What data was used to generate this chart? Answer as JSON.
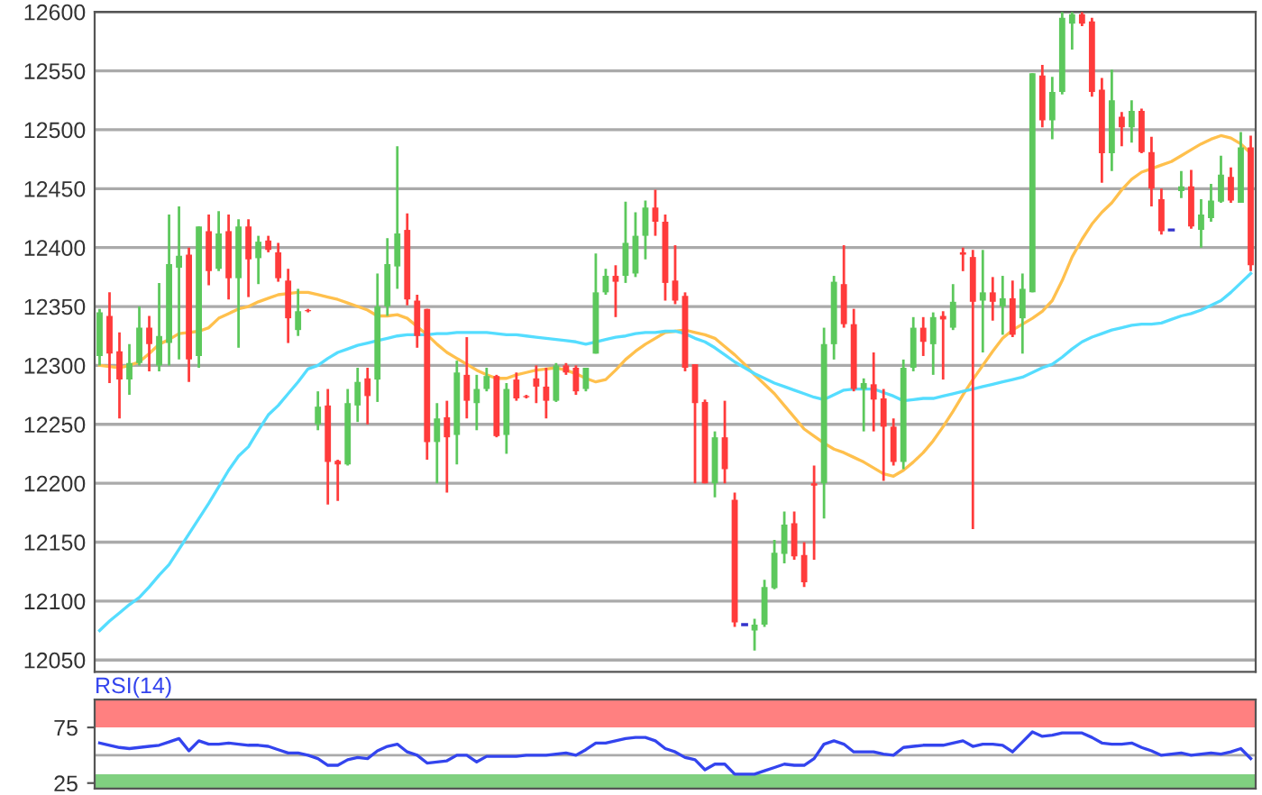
{
  "chart_data": [
    {
      "type": "candlestick",
      "categories": [
        null,
        null,
        null,
        null,
        null,
        null,
        null,
        null,
        null,
        null,
        null,
        null,
        null,
        null,
        null,
        null,
        null,
        null,
        null,
        null,
        null,
        null,
        null,
        null,
        null,
        null,
        null,
        null,
        null,
        null,
        null,
        null,
        null,
        null,
        null,
        null,
        null,
        null,
        null,
        null,
        null,
        null,
        null,
        null,
        null,
        null,
        null,
        null,
        null,
        null,
        null,
        null,
        null,
        null,
        null,
        null,
        null,
        null,
        null,
        null,
        null,
        null,
        null,
        null,
        null,
        null,
        null,
        null,
        null,
        null,
        null,
        null,
        null,
        null,
        null,
        null,
        null,
        null,
        null,
        null,
        null,
        null,
        null,
        null,
        null,
        null,
        null,
        null,
        null,
        null,
        null,
        null,
        null,
        null,
        null,
        null,
        null,
        null,
        null,
        null,
        null,
        null,
        null,
        null,
        null,
        null,
        null,
        null,
        null,
        null,
        null,
        null,
        null,
        null,
        null,
        null,
        null
      ],
      "ohlc": [
        [
          12308,
          12348,
          12300,
          12345
        ],
        [
          12342,
          12362,
          12285,
          12310
        ],
        [
          12312,
          12328,
          12255,
          12288
        ],
        [
          12288,
          12318,
          12275,
          12302
        ],
        [
          12302,
          12350,
          12300,
          12332
        ],
        [
          12332,
          12342,
          12295,
          12318
        ],
        [
          12300,
          12370,
          12295,
          12325
        ],
        [
          12319,
          12428,
          12300,
          12386
        ],
        [
          12383,
          12435,
          12305,
          12393
        ],
        [
          12394,
          12400,
          12286,
          12305
        ],
        [
          12308,
          12418,
          12298,
          12418
        ],
        [
          12414,
          12428,
          12368,
          12380
        ],
        [
          12382,
          12431,
          12380,
          12412
        ],
        [
          12414,
          12428,
          12356,
          12374
        ],
        [
          12374,
          12424,
          12315,
          12418
        ],
        [
          12418,
          12424,
          12358,
          12390
        ],
        [
          12391,
          12410,
          12369,
          12405
        ],
        [
          12406,
          12410,
          12396,
          12398
        ],
        [
          12396,
          12404,
          12371,
          12374
        ],
        [
          12372,
          12382,
          12319,
          12340
        ],
        [
          12330,
          12365,
          12325,
          12346
        ],
        [
          12347,
          12348,
          12345,
          12346
        ],
        [
          12250,
          12278,
          12245,
          12265
        ],
        [
          12266,
          12280,
          12182,
          12218
        ],
        [
          12219,
          12220,
          12185,
          12216
        ],
        [
          12216,
          12280,
          12215,
          12268
        ],
        [
          12266,
          12298,
          12252,
          12286
        ],
        [
          12289,
          12298,
          12250,
          12274
        ],
        [
          12288,
          12378,
          12269,
          12350
        ],
        [
          12350,
          12408,
          12342,
          12386
        ],
        [
          12384,
          12486,
          12365,
          12412
        ],
        [
          12415,
          12429,
          12351,
          12356
        ],
        [
          12355,
          12360,
          12315,
          12325
        ],
        [
          12348,
          12348,
          12220,
          12235
        ],
        [
          12235,
          12268,
          12200,
          12255
        ],
        [
          12256,
          12270,
          12192,
          12239
        ],
        [
          12241,
          12304,
          12216,
          12294
        ],
        [
          12292,
          12324,
          12255,
          12270
        ],
        [
          12268,
          12292,
          12245,
          12280
        ],
        [
          12280,
          12298,
          12278,
          12291
        ],
        [
          12291,
          12292,
          12239,
          12240
        ],
        [
          12241,
          12285,
          12225,
          12280
        ],
        [
          12288,
          12294,
          12270,
          12272
        ],
        [
          12274,
          12275,
          12272,
          12273
        ],
        [
          12289,
          12300,
          12268,
          12282
        ],
        [
          12282,
          12298,
          12255,
          12270
        ],
        [
          12270,
          12302,
          12269,
          12300
        ],
        [
          12300,
          12302,
          12292,
          12294
        ],
        [
          12298,
          12300,
          12275,
          12278
        ],
        [
          12280,
          12298,
          12278,
          12298
        ],
        [
          12310,
          12395,
          12310,
          12362
        ],
        [
          12362,
          12382,
          12360,
          12376
        ],
        [
          12376,
          12385,
          12341,
          12371
        ],
        [
          12376,
          12439,
          12370,
          12404
        ],
        [
          12378,
          12430,
          12375,
          12410
        ],
        [
          12410,
          12440,
          12390,
          12434
        ],
        [
          12434,
          12449,
          12410,
          12422
        ],
        [
          12422,
          12428,
          12355,
          12370
        ],
        [
          12372,
          12402,
          12352,
          12355
        ],
        [
          12359,
          12362,
          12295,
          12298
        ],
        [
          12301,
          12301,
          12200,
          12268
        ],
        [
          12269,
          12271,
          12200,
          12200
        ],
        [
          12200,
          12244,
          12188,
          12239
        ],
        [
          12239,
          12270,
          12200,
          12212
        ],
        [
          12186,
          12192,
          12078,
          12082
        ],
        [
          12080,
          12080,
          12080,
          12080
        ],
        [
          12075,
          12085,
          12058,
          12080
        ],
        [
          12080,
          12118,
          12078,
          12112
        ],
        [
          12111,
          12152,
          12110,
          12141
        ],
        [
          12140,
          12176,
          12132,
          12165
        ],
        [
          12166,
          12176,
          12135,
          12138
        ],
        [
          12139,
          12150,
          12112,
          12116
        ],
        [
          12200,
          12215,
          12135,
          12198
        ],
        [
          12200,
          12332,
          12170,
          12318
        ],
        [
          12318,
          12376,
          12305,
          12371
        ],
        [
          12369,
          12402,
          12332,
          12335
        ],
        [
          12335,
          12348,
          12278,
          12280
        ],
        [
          12280,
          12289,
          12244,
          12285
        ],
        [
          12284,
          12311,
          12244,
          12271
        ],
        [
          12272,
          12280,
          12202,
          12248
        ],
        [
          12248,
          12255,
          12215,
          12218
        ],
        [
          12218,
          12305,
          12212,
          12298
        ],
        [
          12298,
          12341,
          12295,
          12332
        ],
        [
          12332,
          12341,
          12308,
          12320
        ],
        [
          12318,
          12345,
          12292,
          12341
        ],
        [
          12342,
          12346,
          12288,
          12339
        ],
        [
          12332,
          12369,
          12330,
          12354
        ],
        [
          12396,
          12400,
          12380,
          12394
        ],
        [
          12392,
          12398,
          12161,
          12354
        ],
        [
          12355,
          12398,
          12311,
          12362
        ],
        [
          12362,
          12375,
          12338,
          12354
        ],
        [
          12350,
          12376,
          12326,
          12357
        ],
        [
          12357,
          12372,
          12324,
          12326
        ],
        [
          12340,
          12378,
          12310,
          12365
        ],
        [
          12362,
          12548,
          12362,
          12548
        ],
        [
          12546,
          12555,
          12502,
          12508
        ],
        [
          12508,
          12545,
          12492,
          12532
        ],
        [
          12532,
          12600,
          12530,
          12595
        ],
        [
          12590,
          12600,
          12568,
          12598
        ],
        [
          12598,
          12600,
          12588,
          12590
        ],
        [
          12592,
          12595,
          12528,
          12532
        ],
        [
          12534,
          12544,
          12455,
          12480
        ],
        [
          12480,
          12551,
          12465,
          12525
        ],
        [
          12511,
          12515,
          12486,
          12502
        ],
        [
          12502,
          12525,
          12489,
          12516
        ],
        [
          12516,
          12518,
          12480,
          12481
        ],
        [
          12481,
          12494,
          12435,
          12450
        ],
        [
          12441,
          12450,
          12411,
          12414
        ],
        [
          12415,
          12415,
          12415,
          12415
        ],
        [
          12448,
          12465,
          12442,
          12452
        ],
        [
          12452,
          12466,
          12416,
          12418
        ],
        [
          12415,
          12441,
          12400,
          12428
        ],
        [
          12425,
          12454,
          12422,
          12440
        ],
        [
          12439,
          12478,
          12438,
          12462
        ],
        [
          12460,
          12468,
          12438,
          12440
        ],
        [
          12438,
          12498,
          12438,
          12485
        ],
        [
          12485,
          12495,
          12380,
          12385
        ]
      ],
      "colors": [
        "#5cc85c",
        "#ff3b3b",
        "#ff3b3b",
        "#5cc85c",
        "#5cc85c",
        "#ff3b3b",
        "#5cc85c",
        "#5cc85c",
        "#5cc85c",
        "#ff3b3b",
        "#5cc85c",
        "#ff3b3b",
        "#5cc85c",
        "#ff3b3b",
        "#5cc85c",
        "#ff3b3b",
        "#5cc85c",
        "#ff3b3b",
        "#ff3b3b",
        "#ff3b3b",
        "#5cc85c",
        "#ff3b3b",
        "#5cc85c",
        "#ff3b3b",
        "#ff3b3b",
        "#5cc85c",
        "#5cc85c",
        "#ff3b3b",
        "#5cc85c",
        "#5cc85c",
        "#5cc85c",
        "#ff3b3b",
        "#ff3b3b",
        "#ff3b3b",
        "#5cc85c",
        "#ff3b3b",
        "#5cc85c",
        "#ff3b3b",
        "#5cc85c",
        "#5cc85c",
        "#ff3b3b",
        "#5cc85c",
        "#ff3b3b",
        "#ff3b3b",
        "#ff3b3b",
        "#ff3b3b",
        "#5cc85c",
        "#ff3b3b",
        "#ff3b3b",
        "#5cc85c",
        "#5cc85c",
        "#5cc85c",
        "#ff3b3b",
        "#5cc85c",
        "#5cc85c",
        "#5cc85c",
        "#ff3b3b",
        "#ff3b3b",
        "#ff3b3b",
        "#ff3b3b",
        "#ff3b3b",
        "#ff3b3b",
        "#5cc85c",
        "#ff3b3b",
        "#ff3b3b",
        "#3333cc",
        "#5cc85c",
        "#5cc85c",
        "#5cc85c",
        "#5cc85c",
        "#ff3b3b",
        "#ff3b3b",
        "#ff3b3b",
        "#5cc85c",
        "#5cc85c",
        "#ff3b3b",
        "#ff3b3b",
        "#5cc85c",
        "#ff3b3b",
        "#ff3b3b",
        "#ff3b3b",
        "#5cc85c",
        "#5cc85c",
        "#ff3b3b",
        "#5cc85c",
        "#ff3b3b",
        "#5cc85c",
        "#ff3b3b",
        "#ff3b3b",
        "#5cc85c",
        "#ff3b3b",
        "#5cc85c",
        "#ff3b3b",
        "#5cc85c",
        "#5cc85c",
        "#ff3b3b",
        "#5cc85c",
        "#5cc85c",
        "#5cc85c",
        "#ff3b3b",
        "#ff3b3b",
        "#ff3b3b",
        "#5cc85c",
        "#ff3b3b",
        "#5cc85c",
        "#ff3b3b",
        "#ff3b3b",
        "#ff3b3b",
        "#3333cc",
        "#5cc85c",
        "#ff3b3b",
        "#5cc85c",
        "#5cc85c",
        "#5cc85c",
        "#ff3b3b",
        "#5cc85c",
        "#ff3b3b"
      ],
      "series": [
        {
          "type": "line",
          "color": "#ffc04d",
          "values": [
            12300,
            12299,
            12298,
            12300,
            12303,
            12310,
            12318,
            12322,
            12327,
            12328,
            12329,
            12332,
            12340,
            12344,
            12348,
            12350,
            12354,
            12357,
            12360,
            12361,
            12362,
            12362,
            12360,
            12358,
            12356,
            12353,
            12350,
            12347,
            12342,
            12342,
            12343,
            12340,
            12333,
            12326,
            12318,
            12311,
            12306,
            12301,
            12296,
            12292,
            12289,
            12289,
            12292,
            12294,
            12296,
            12297,
            12298,
            12296,
            12293,
            12289,
            12286,
            12288,
            12296,
            12305,
            12312,
            12318,
            12323,
            12328,
            12329,
            12330,
            12328,
            12326,
            12323,
            12316,
            12309,
            12301,
            12292,
            12284,
            12276,
            12266,
            12256,
            12246,
            12240,
            12234,
            12229,
            12226,
            12222,
            12218,
            12213,
            12208,
            12206,
            12211,
            12218,
            12226,
            12236,
            12248,
            12261,
            12275,
            12288,
            12300,
            12312,
            12323,
            12330,
            12335,
            12340,
            12346,
            12355,
            12372,
            12392,
            12407,
            12420,
            12430,
            12438,
            12449,
            12458,
            12464,
            12467,
            12470,
            12473,
            12478,
            12483,
            12488,
            12492,
            12495,
            12493,
            12488,
            12480
          ]
        },
        {
          "type": "line",
          "color": "#55ddff",
          "values": [
            12075,
            12083,
            12090,
            12097,
            12103,
            12112,
            12122,
            12131,
            12144,
            12157,
            12170,
            12183,
            12197,
            12211,
            12223,
            12231,
            12245,
            12258,
            12266,
            12276,
            12286,
            12297,
            12300,
            12306,
            12311,
            12314,
            12317,
            12319,
            12321,
            12323,
            12325,
            12326,
            12326,
            12326,
            12327,
            12327,
            12328,
            12328,
            12328,
            12328,
            12327,
            12326,
            12326,
            12325,
            12324,
            12323,
            12322,
            12321,
            12320,
            12318,
            12320,
            12322,
            12324,
            12325,
            12327,
            12328,
            12328,
            12329,
            12329,
            12327,
            12323,
            12320,
            12315,
            12309,
            12303,
            12298,
            12293,
            12289,
            12285,
            12282,
            12279,
            12276,
            12273,
            12271,
            12275,
            12279,
            12280,
            12280,
            12280,
            12277,
            12274,
            12270,
            12271,
            12272,
            12272,
            12274,
            12276,
            12278,
            12280,
            12282,
            12284,
            12286,
            12288,
            12290,
            12294,
            12298,
            12301,
            12307,
            12314,
            12320,
            12324,
            12327,
            12330,
            12332,
            12334,
            12335,
            12335,
            12336,
            12339,
            12342,
            12344,
            12347,
            12351,
            12355,
            12362,
            12370,
            12378
          ]
        }
      ],
      "ylim": [
        12040,
        12600
      ],
      "yticks": [
        12050,
        12100,
        12150,
        12200,
        12250,
        12300,
        12350,
        12400,
        12450,
        12500,
        12550,
        12600
      ],
      "grid": "y",
      "tick_labels": "y"
    },
    {
      "type": "line",
      "title": "RSI(14)",
      "categories": [
        null,
        null,
        null,
        null,
        null,
        null,
        null,
        null,
        null,
        null,
        null,
        null,
        null,
        null,
        null,
        null,
        null,
        null,
        null,
        null,
        null,
        null,
        null,
        null,
        null,
        null,
        null,
        null,
        null,
        null,
        null,
        null,
        null,
        null,
        null,
        null,
        null,
        null,
        null,
        null,
        null,
        null,
        null,
        null,
        null,
        null,
        null,
        null,
        null,
        null,
        null,
        null,
        null,
        null,
        null,
        null,
        null,
        null,
        null,
        null,
        null,
        null,
        null,
        null,
        null,
        null,
        null,
        null,
        null,
        null,
        null,
        null,
        null,
        null,
        null,
        null,
        null,
        null,
        null,
        null,
        null,
        null,
        null,
        null,
        null,
        null,
        null,
        null,
        null,
        null,
        null,
        null,
        null,
        null,
        null,
        null,
        null,
        null,
        null,
        null,
        null,
        null,
        null,
        null,
        null,
        null,
        null,
        null,
        null,
        null,
        null,
        null,
        null,
        null,
        null,
        null,
        null
      ],
      "series": [
        {
          "color": "#3344ee",
          "values": [
            61,
            59,
            57,
            56,
            57,
            58,
            59,
            62,
            65,
            54,
            63,
            60,
            60,
            61,
            60,
            59,
            59,
            58,
            55,
            52,
            52,
            50,
            47,
            41,
            41,
            46,
            48,
            47,
            54,
            58,
            60,
            53,
            50,
            43,
            44,
            45,
            50,
            50,
            44,
            49,
            49,
            49,
            49,
            50,
            50,
            50,
            51,
            52,
            50,
            55,
            61,
            61,
            63,
            65,
            66,
            66,
            63,
            56,
            53,
            48,
            46,
            37,
            42,
            42,
            33,
            33,
            33,
            36,
            39,
            42,
            41,
            41,
            47,
            60,
            63,
            60,
            53,
            53,
            53,
            51,
            50,
            57,
            58,
            59,
            59,
            59,
            61,
            63,
            58,
            60,
            60,
            59,
            53,
            62,
            71,
            67,
            68,
            70,
            70,
            70,
            66,
            61,
            60,
            60,
            61,
            57,
            54,
            50,
            51,
            52,
            50,
            51,
            52,
            51,
            53,
            56,
            47
          ]
        }
      ],
      "bands": [
        {
          "axis": "y",
          "from": 75,
          "to": 100,
          "color": "#ff8080"
        },
        {
          "axis": "y",
          "from": 20,
          "to": 33,
          "color": "#80d080"
        }
      ],
      "ref_lines": [
        {
          "axis": "y",
          "value": 50,
          "color": "#aaaaaa"
        }
      ],
      "ylim": [
        20,
        100
      ],
      "yticks": [
        25,
        75
      ],
      "tick_labels": "y"
    }
  ]
}
